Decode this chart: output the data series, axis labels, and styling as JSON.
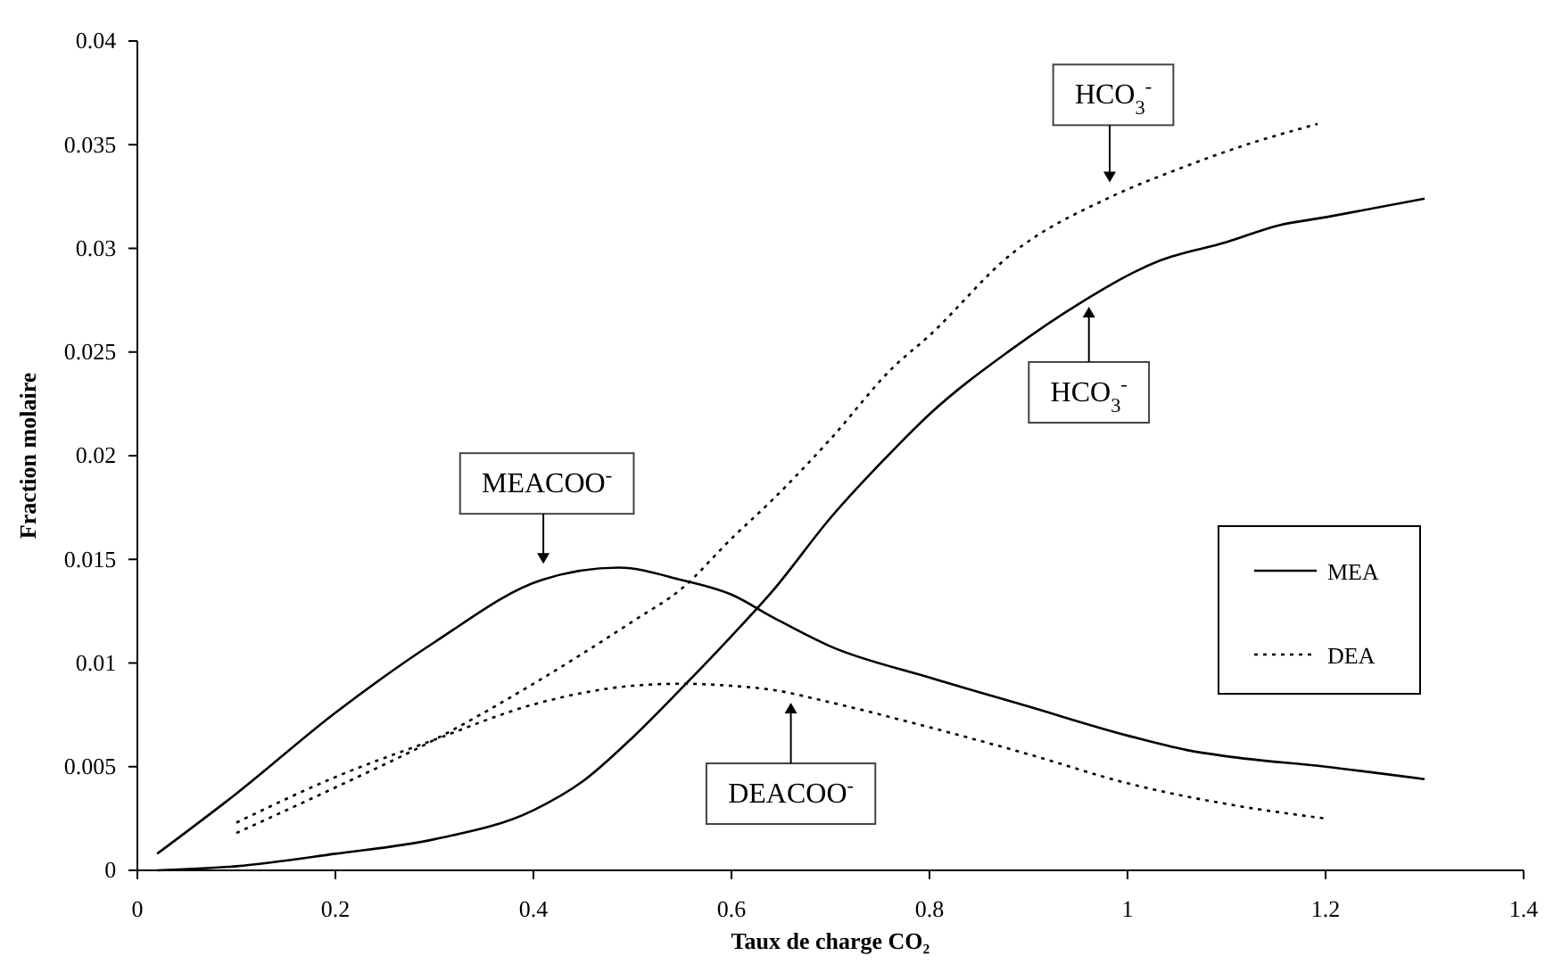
{
  "chart_data": {
    "type": "line",
    "xlabel": "Taux de charge CO₂",
    "ylabel": "Fraction molaire",
    "xlim": [
      0,
      1.4
    ],
    "xticks": [
      0,
      0.2,
      0.4,
      0.6,
      0.8,
      1,
      1.2,
      1.4
    ],
    "ylim": [
      0,
      0.04
    ],
    "yticks": [
      0,
      0.005,
      0.01,
      0.015,
      0.02,
      0.025,
      0.03,
      0.035,
      0.04
    ],
    "grid": false,
    "legend": "right",
    "marker": "none",
    "series": [
      {
        "name": "MEA",
        "color": "#000000",
        "line_style": "solid",
        "x": [
          0.02,
          0.1,
          0.2,
          0.3,
          0.408,
          0.486,
          0.55,
          0.6,
          0.642,
          0.7,
          0.8,
          0.9,
          1.0,
          1.06,
          1.1,
          1.2,
          1.3
        ],
        "values": [
          0.0008,
          0.0037,
          0.0076,
          0.011,
          0.014,
          0.0146,
          0.014,
          0.0133,
          0.0122,
          0.0108,
          0.0093,
          0.0079,
          0.0065,
          0.0058,
          0.0055,
          0.005,
          0.0044
        ]
      },
      {
        "color": "#000000",
        "line_style": "solid",
        "x": [
          0.02,
          0.1,
          0.2,
          0.3,
          0.4,
          0.45,
          0.5,
          0.55,
          0.6,
          0.642,
          0.7,
          0.762,
          0.8,
          0.882,
          0.95,
          1.032,
          1.1,
          1.152,
          1.2,
          1.3
        ],
        "values": [
          0.0,
          0.0002,
          0.0008,
          0.0015,
          0.0029,
          0.0043,
          0.0064,
          0.0088,
          0.0113,
          0.0135,
          0.017,
          0.0202,
          0.022,
          0.0251,
          0.0273,
          0.0294,
          0.0303,
          0.0311,
          0.0315,
          0.0324
        ]
      },
      {
        "name": "DEA",
        "color": "#000000",
        "line_style": "dotted",
        "x": [
          0.1,
          0.2,
          0.3,
          0.4,
          0.5,
          0.55,
          0.6,
          0.642,
          0.7,
          0.8,
          0.9,
          1.0,
          1.1,
          1.2
        ],
        "values": [
          0.0023,
          0.0045,
          0.0063,
          0.008,
          0.0089,
          0.009,
          0.0089,
          0.0087,
          0.0081,
          0.0069,
          0.0056,
          0.0042,
          0.0032,
          0.0025
        ]
      },
      {
        "color": "#000000",
        "line_style": "dotted",
        "x": [
          0.1,
          0.2,
          0.3,
          0.4,
          0.5,
          0.55,
          0.6,
          0.642,
          0.7,
          0.762,
          0.8,
          0.882,
          0.984,
          1.05,
          1.12,
          1.192
        ],
        "values": [
          0.0018,
          0.004,
          0.0063,
          0.009,
          0.012,
          0.0136,
          0.016,
          0.0179,
          0.0208,
          0.0242,
          0.0258,
          0.0297,
          0.0325,
          0.0338,
          0.035,
          0.036
        ]
      }
    ],
    "annotations": [
      {
        "text": "MEACOO$^{-}$",
        "x": 0.41,
        "y": 0.0141
      },
      {
        "text": "HCO$_{3}$$^{-}$",
        "x": 0.982,
        "y": 0.0325
      },
      {
        "text": "HCO$_{3}$$^{-}$",
        "x": 0.961,
        "y": 0.0277
      },
      {
        "text": "DEACOO$^{-}$",
        "x": 0.66,
        "y": 0.0086
      }
    ]
  }
}
